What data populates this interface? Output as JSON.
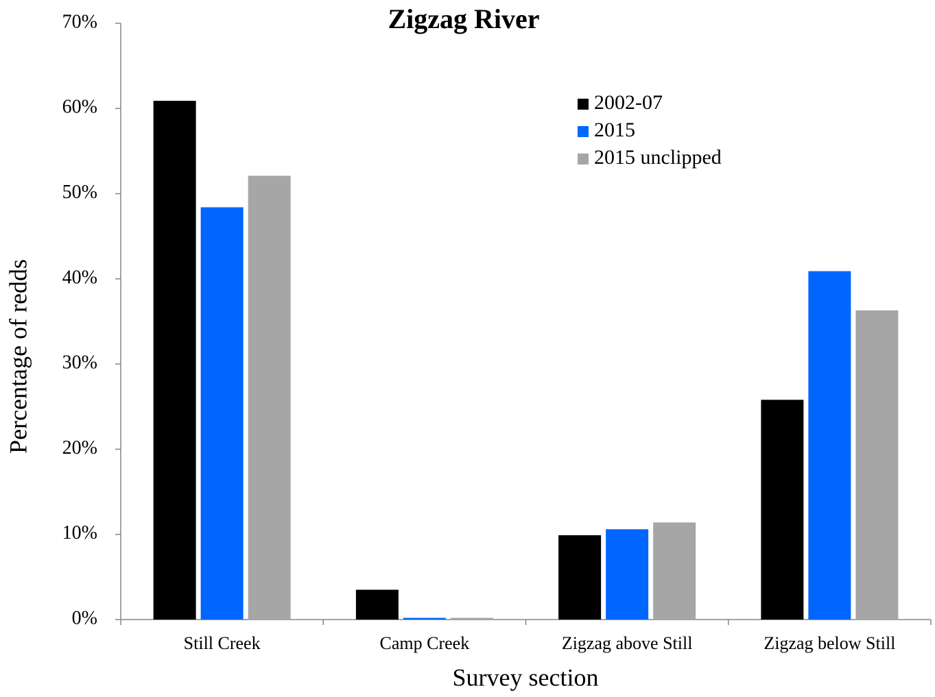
{
  "chart_data": {
    "type": "bar",
    "title": "Zigzag River",
    "x_label": "Survey section",
    "y_label": "Percentage of redds",
    "categories": [
      "Still Creek",
      "Camp Creek",
      "Zigzag above Still",
      "Zigzag below Still"
    ],
    "series": [
      {
        "name": "2002-07",
        "color": "#000000",
        "values": [
          60.9,
          3.5,
          9.9,
          25.8
        ]
      },
      {
        "name": "2015",
        "color": "#0066ff",
        "values": [
          48.4,
          0.2,
          10.6,
          40.9
        ]
      },
      {
        "name": "2015 unclipped",
        "color": "#a6a6a6",
        "values": [
          52.1,
          0.2,
          11.4,
          36.3
        ]
      }
    ],
    "ylim": [
      0,
      70
    ],
    "yticks": [
      {
        "value": 0,
        "label": "0%"
      },
      {
        "value": 10,
        "label": "10%"
      },
      {
        "value": 20,
        "label": "20%"
      },
      {
        "value": 30,
        "label": "30%"
      },
      {
        "value": 40,
        "label": "40%"
      },
      {
        "value": 50,
        "label": "50%"
      },
      {
        "value": 60,
        "label": "60%"
      },
      {
        "value": 70,
        "label": "70%"
      }
    ],
    "grid": false,
    "legend": "upper-right"
  }
}
